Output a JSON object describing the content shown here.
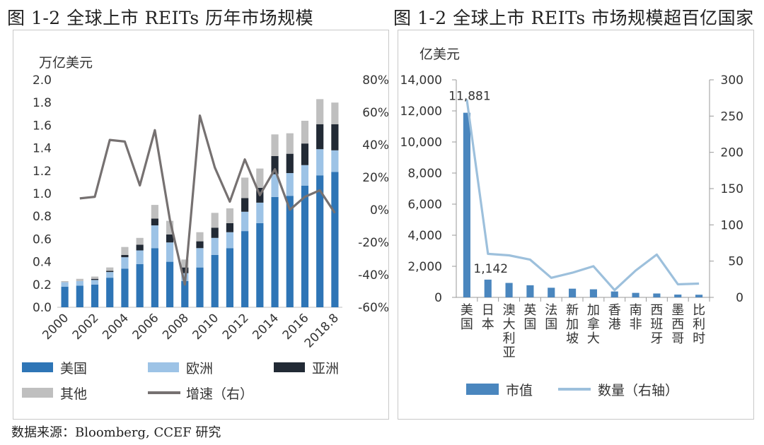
{
  "titles": {
    "left": "图 1-2 全球上市 REITs 历年市场规模",
    "right": "图 1-2 全球上市 REITs 市场规模超百亿国家"
  },
  "source": "数据来源：Bloomberg, CCEF 研究",
  "colors": {
    "us": "#2e75b6",
    "eu": "#9dc3e6",
    "asia": "#222a35",
    "other": "#bfbfbf",
    "growth": "#767171",
    "bar2": "#4a86be",
    "line2": "#9dc0dc"
  },
  "chart_data": [
    {
      "type": "bar",
      "stacked": true,
      "title": "图 1-2 全球上市 REITs 历年市场规模",
      "ylabel": "万亿美元",
      "ylim": [
        0,
        2.0
      ],
      "yticks": [
        "0.0",
        "0.2",
        "0.4",
        "0.6",
        "0.8",
        "1.0",
        "1.2",
        "1.4",
        "1.6",
        "1.8",
        "2.0"
      ],
      "y2lim": [
        -0.6,
        0.8
      ],
      "y2ticks": [
        "-60%",
        "-40%",
        "-20%",
        "0%",
        "20%",
        "40%",
        "60%",
        "80%"
      ],
      "categories": [
        "2000",
        "2001",
        "2002",
        "2003",
        "2004",
        "2005",
        "2006",
        "2007",
        "2008",
        "2009",
        "2010",
        "2011",
        "2012",
        "2013",
        "2014",
        "2015",
        "2016",
        "2017",
        "2018.8"
      ],
      "xtick_labels": [
        "2000",
        "2002",
        "2004",
        "2006",
        "2008",
        "2010",
        "2012",
        "2014",
        "2016",
        "2018.8"
      ],
      "series": [
        {
          "name": "美国",
          "values": [
            0.18,
            0.19,
            0.2,
            0.26,
            0.34,
            0.38,
            0.52,
            0.4,
            0.23,
            0.35,
            0.46,
            0.52,
            0.67,
            0.74,
            0.97,
            0.98,
            1.07,
            1.16,
            1.19
          ]
        },
        {
          "name": "欧洲",
          "values": [
            0.04,
            0.04,
            0.04,
            0.05,
            0.1,
            0.12,
            0.2,
            0.17,
            0.07,
            0.17,
            0.15,
            0.14,
            0.17,
            0.18,
            0.2,
            0.2,
            0.18,
            0.23,
            0.19
          ]
        },
        {
          "name": "亚洲",
          "values": [
            0.0,
            0.0,
            0.01,
            0.01,
            0.02,
            0.05,
            0.06,
            0.07,
            0.05,
            0.06,
            0.09,
            0.08,
            0.12,
            0.13,
            0.16,
            0.17,
            0.19,
            0.22,
            0.23
          ]
        },
        {
          "name": "其他",
          "values": [
            0.01,
            0.02,
            0.02,
            0.03,
            0.07,
            0.06,
            0.12,
            0.12,
            0.07,
            0.08,
            0.13,
            0.13,
            0.18,
            0.17,
            0.19,
            0.18,
            0.2,
            0.22,
            0.19
          ]
        }
      ],
      "line_series": {
        "name": "增速（右）",
        "values": [
          null,
          0.07,
          0.08,
          0.43,
          0.42,
          0.15,
          0.49,
          -0.06,
          -0.46,
          0.58,
          0.26,
          0.05,
          0.31,
          0.09,
          0.25,
          0.0,
          0.08,
          0.12,
          -0.02
        ]
      },
      "legend": [
        "美国",
        "欧洲",
        "亚洲",
        "其他",
        "增速（右）"
      ]
    },
    {
      "type": "bar",
      "title": "图 1-2 全球上市 REITs 市场规模超百亿国家",
      "ylabel": "亿美元",
      "ylim": [
        0,
        14000
      ],
      "yticks": [
        "0",
        "2,000",
        "4,000",
        "6,000",
        "8,000",
        "10,000",
        "12,000",
        "14,000"
      ],
      "y2lim": [
        0,
        300
      ],
      "y2ticks": [
        "0",
        "50",
        "100",
        "150",
        "200",
        "250",
        "300"
      ],
      "categories": [
        "美国",
        "日本",
        "澳大利亚",
        "英国",
        "法国",
        "新加坡",
        "加拿大",
        "香港",
        "南非",
        "西班牙",
        "墨西哥",
        "比利时"
      ],
      "series": [
        {
          "name": "市值",
          "values": [
            11881,
            1142,
            930,
            780,
            620,
            560,
            520,
            380,
            290,
            250,
            180,
            170
          ]
        }
      ],
      "line_series": {
        "name": "数量（右轴）",
        "values": [
          273,
          60,
          58,
          52,
          27,
          34,
          43,
          10,
          37,
          59,
          18,
          19
        ]
      },
      "data_labels": [
        "11,881",
        "1,142"
      ],
      "legend": [
        "市值",
        "数量（右轴）"
      ]
    }
  ]
}
